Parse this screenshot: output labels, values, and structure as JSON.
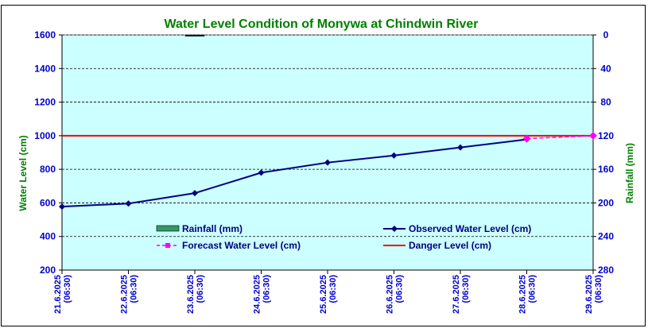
{
  "chart_data": {
    "type": "line",
    "title": "Water Level Condition of Monywa at Chindwin River",
    "ylabel": "Water Level (cm)",
    "y2label": "Rainfall (mm)",
    "categories": [
      [
        "21.6.2025",
        "(06:30)"
      ],
      [
        "22.6.2025",
        "(06:30)"
      ],
      [
        "23.6.2025",
        "(06:30)"
      ],
      [
        "24.6.2025",
        "(06:30)"
      ],
      [
        "25.6.2025",
        "(06:30)"
      ],
      [
        "26.6.2025",
        "(06:30)"
      ],
      [
        "27.6.2025",
        "(06:30)"
      ],
      [
        "28.6.2025",
        "(06:30)"
      ],
      [
        "29.6.2025",
        "(06:30)"
      ]
    ],
    "ylim": [
      200,
      1600
    ],
    "yticks": [
      200,
      400,
      600,
      800,
      1000,
      1200,
      1400,
      1600
    ],
    "y2lim": [
      0,
      280
    ],
    "y2ticks": [
      0,
      40,
      80,
      120,
      160,
      200,
      240,
      280
    ],
    "y2_reversed": true,
    "grid": true,
    "legend": [
      {
        "name": "Rainfall (mm)",
        "color": "#339966",
        "marker": "box"
      },
      {
        "name": "Observed Water Level (cm)",
        "color": "#000080",
        "marker": "line-diamond"
      },
      {
        "name": "Forecast Water Level (cm)",
        "color": "#ff00ff",
        "marker": "dashed-square"
      },
      {
        "name": "Danger Level (cm)",
        "color": "#ff0000",
        "marker": "line"
      }
    ],
    "series": [
      {
        "name": "Rainfall (mm)",
        "type": "bar",
        "axis": "right",
        "values": [
          null,
          null,
          0,
          null,
          null,
          null,
          null,
          null,
          null
        ]
      },
      {
        "name": "Observed Water Level (cm)",
        "type": "line",
        "values": [
          578,
          596,
          658,
          780,
          840,
          882,
          930,
          978,
          null
        ]
      },
      {
        "name": "Forecast Water Level (cm)",
        "type": "line",
        "values": [
          null,
          null,
          null,
          null,
          null,
          null,
          null,
          983,
          1000
        ]
      },
      {
        "name": "Danger Level (cm)",
        "type": "line",
        "values": [
          1000,
          1000,
          1000,
          1000,
          1000,
          1000,
          1000,
          1000,
          1000
        ]
      }
    ],
    "colors": {
      "plot_bg": "#ccffff",
      "title": "#008000",
      "axis_text": "#0000cc",
      "axis_label": "#008000",
      "observed": "#000080",
      "forecast": "#ff00ff",
      "danger": "#ff0000",
      "rainfall": "#339966"
    }
  }
}
